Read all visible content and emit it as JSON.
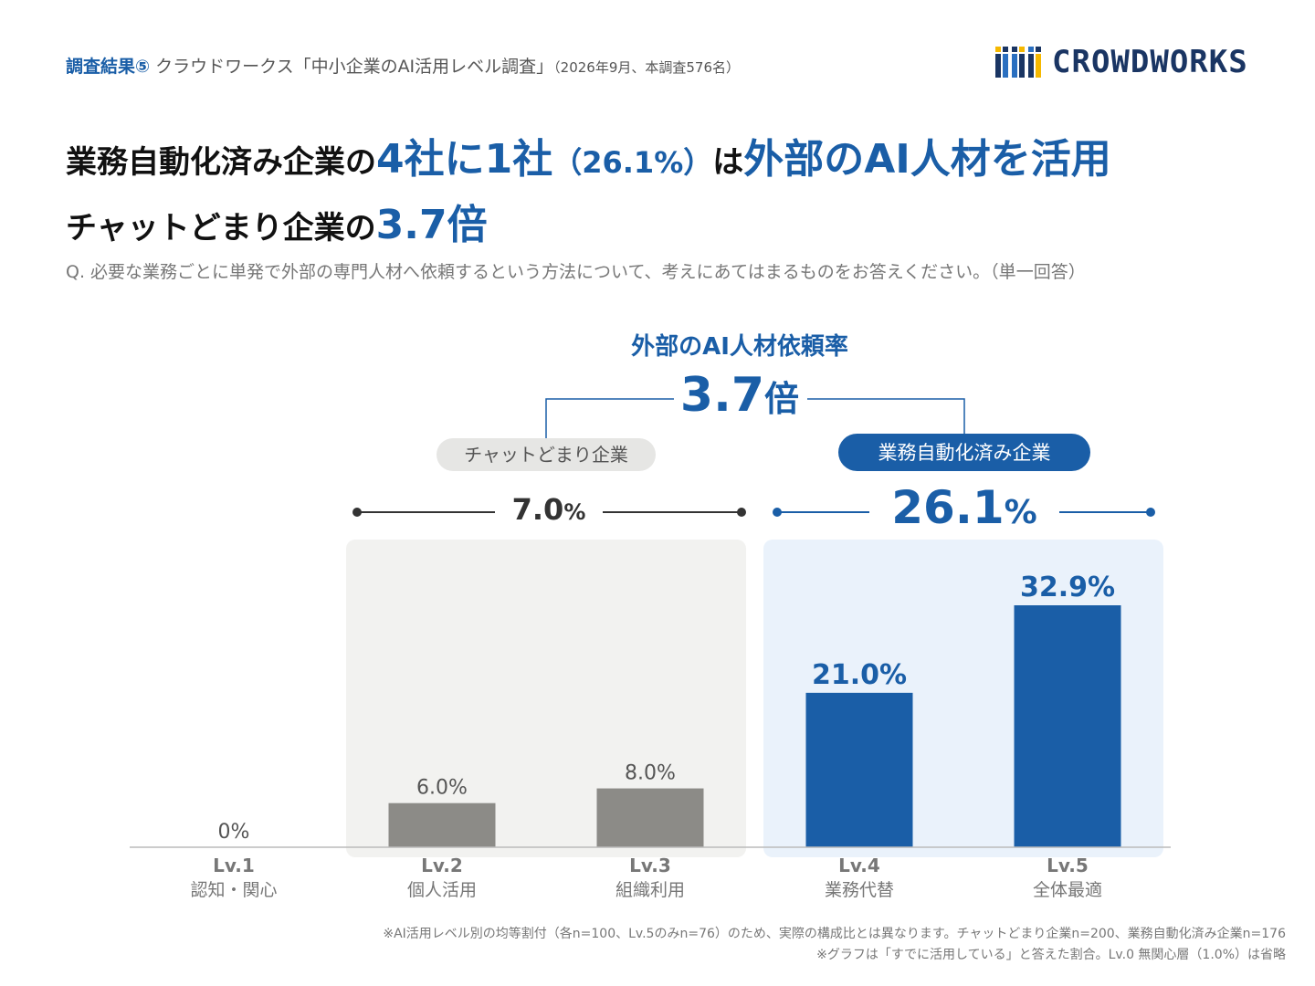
{
  "header": {
    "label": "調査結果⑤",
    "source": " クラウドワークス「中小企業のAI活用レベル調査」",
    "meta": "（2026年9月、本調査576名）",
    "logo_text": "CROWDWORKS"
  },
  "headline": {
    "l1_a": "業務自動化済み企業の",
    "l1_b": "4社に1社",
    "l1_c": "（26.1%）",
    "l1_d": "は",
    "l1_e": "外部のAI人材を活用",
    "l2_a": "チャットどまり企業の",
    "l2_b": "3.7倍"
  },
  "question": "Q. 必要な業務ごとに単発で外部の専門人材へ依頼するという方法について、考えにあてはまるものをお答えください。（単一回答）",
  "comparison": {
    "title": "外部のAI人材依頼率",
    "ratio": "3.7",
    "ratio_unit": "倍",
    "group_a_label": "チャットどまり企業",
    "group_a_value": "7.0",
    "group_b_label": "業務自動化済み企業",
    "group_b_value": "26.1",
    "unit": "%"
  },
  "chart_data": {
    "type": "bar",
    "categories": [
      "Lv.1",
      "Lv.2",
      "Lv.3",
      "Lv.4",
      "Lv.5"
    ],
    "subcategories": [
      "認知・関心",
      "個人活用",
      "組織利用",
      "業務代替",
      "全体最適"
    ],
    "values": [
      0,
      6.0,
      8.0,
      21.0,
      32.9
    ],
    "value_labels": [
      "0%",
      "6.0%",
      "8.0%",
      "21.0%",
      "32.9%"
    ],
    "ylim": [
      0,
      35
    ],
    "colors": {
      "gray": "#8c8b87",
      "blue": "#1a5ea7",
      "label_blue": "#1a5ea7",
      "label_gray": "#555555"
    },
    "groups": [
      {
        "name": "チャットどまり企業",
        "categories": [
          "Lv.2",
          "Lv.3"
        ],
        "background": "#f2f2f0"
      },
      {
        "name": "業務自動化済み企業",
        "categories": [
          "Lv.4",
          "Lv.5"
        ],
        "background": "#eaf2fb"
      }
    ]
  },
  "notes": {
    "n1": "※AI活用レベル別の均等割付（各n=100、Lv.5のみn=76）のため、実際の構成比とは異なります。チャットどまり企業n=200、業務自動化済み企業n=176",
    "n2": "※グラフは「すでに活用している」と答えた割合。Lv.0 無関心層（1.0%）は省略"
  }
}
